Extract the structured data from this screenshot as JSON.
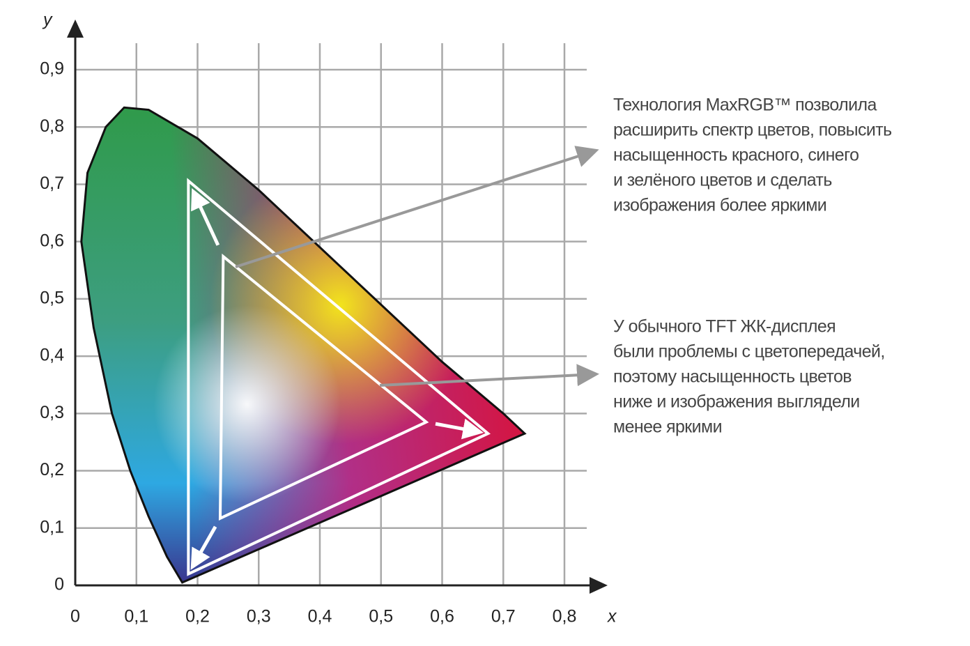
{
  "chart_data": {
    "type": "chromaticity",
    "x_label": "x",
    "y_label": "y",
    "xlim": [
      0,
      0.8
    ],
    "ylim": [
      0,
      0.9
    ],
    "xticks": [
      0,
      {
        "value": 0.1,
        "label": "0,1"
      },
      {
        "value": 0.2,
        "label": "0,2"
      },
      {
        "value": 0.3,
        "label": "0,3"
      },
      {
        "value": 0.4,
        "label": "0,4"
      },
      {
        "value": 0.5,
        "label": "0,5"
      },
      {
        "value": 0.6,
        "label": "0,6"
      },
      {
        "value": 0.7,
        "label": "0,7"
      },
      {
        "value": 0.8,
        "label": "0,8"
      }
    ],
    "yticks": [
      0,
      {
        "value": 0.1,
        "label": "0,1"
      },
      {
        "value": 0.2,
        "label": "0,2"
      },
      {
        "value": 0.3,
        "label": "0,3"
      },
      {
        "value": 0.4,
        "label": "0,4"
      },
      {
        "value": 0.5,
        "label": "0,5"
      },
      {
        "value": 0.6,
        "label": "0,6"
      },
      {
        "value": 0.7,
        "label": "0,7"
      },
      {
        "value": 0.8,
        "label": "0,8"
      },
      {
        "value": 0.9,
        "label": "0,9"
      }
    ],
    "grid": true,
    "series": [
      {
        "kind": "locus",
        "color": "#111111",
        "x": [
          0.175,
          0.15,
          0.12,
          0.09,
          0.06,
          0.03,
          0.01,
          0.02,
          0.05,
          0.08,
          0.12,
          0.2,
          0.3,
          0.4,
          0.5,
          0.6,
          0.7,
          0.735
        ],
        "y": [
          0.005,
          0.05,
          0.12,
          0.2,
          0.3,
          0.45,
          0.6,
          0.72,
          0.8,
          0.834,
          0.83,
          0.78,
          0.69,
          0.59,
          0.49,
          0.39,
          0.3,
          0.265
        ]
      },
      {
        "kind": "triangle",
        "color": "#ffffff",
        "x": [
          0.185,
          0.675,
          0.185
        ],
        "y": [
          0.706,
          0.265,
          0.02
        ]
      },
      {
        "kind": "triangle",
        "color": "#ffffff",
        "x": [
          0.242,
          0.574,
          0.237
        ],
        "y": [
          0.574,
          0.285,
          0.117
        ]
      }
    ],
    "annotations": [
      {
        "lines": [
          "Технология MaxRGB™ позволила",
          "расширить спектр цветов, повысить",
          "насыщенность красного, синего",
          "и зелёного цветов и сделать",
          "изображения более яркими"
        ]
      },
      {
        "lines": [
          "У обычного TFT ЖК-дисплея",
          "были проблемы с цветопередачей,",
          "поэтому насыщенность цветов",
          "ниже и изображения выглядели",
          "менее яркими"
        ]
      }
    ]
  }
}
